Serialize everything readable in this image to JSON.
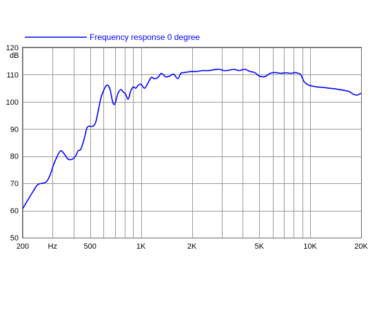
{
  "chart_data": {
    "type": "line",
    "title": "",
    "xlabel": "",
    "ylabel": "dB",
    "x_scale": "log",
    "xlim": [
      200,
      20000
    ],
    "ylim": [
      50,
      120
    ],
    "grid": true,
    "legend_position": "top-left",
    "x_ticks": [
      {
        "value": 200,
        "label": "200"
      },
      {
        "value": 300,
        "label": "Hz"
      },
      {
        "value": 500,
        "label": "500"
      },
      {
        "value": 1000,
        "label": "1K"
      },
      {
        "value": 2000,
        "label": "2K"
      },
      {
        "value": 5000,
        "label": "5K"
      },
      {
        "value": 10000,
        "label": "10K"
      },
      {
        "value": 20000,
        "label": "20K"
      }
    ],
    "x_gridlines": [
      200,
      300,
      400,
      500,
      600,
      700,
      800,
      900,
      1000,
      2000,
      3000,
      4000,
      5000,
      6000,
      7000,
      8000,
      9000,
      10000,
      20000
    ],
    "y_ticks": [
      50,
      60,
      70,
      80,
      90,
      100,
      110,
      120
    ],
    "series": [
      {
        "name": "Frequency response 0 degree",
        "color": "#0000ff",
        "x": [
          200,
          215,
          230,
          245,
          260,
          275,
          290,
          305,
          320,
          335,
          350,
          370,
          390,
          410,
          425,
          440,
          460,
          480,
          500,
          520,
          540,
          560,
          580,
          600,
          620,
          640,
          660,
          680,
          700,
          730,
          760,
          790,
          810,
          840,
          870,
          900,
          930,
          960,
          1000,
          1050,
          1100,
          1150,
          1200,
          1260,
          1320,
          1400,
          1480,
          1560,
          1650,
          1720,
          1800,
          1900,
          2000,
          2150,
          2300,
          2500,
          2700,
          2900,
          3100,
          3300,
          3550,
          3800,
          4100,
          4400,
          4700,
          5000,
          5400,
          5800,
          6200,
          6700,
          7200,
          7700,
          8200,
          8500,
          8800,
          9200,
          9600,
          10000,
          11000,
          12000,
          13000,
          14000,
          15000,
          16000,
          17000,
          18000,
          19000,
          20000
        ],
        "values": [
          60.7,
          64,
          67,
          69.5,
          70,
          70.5,
          73,
          77,
          80,
          82,
          81,
          79,
          78.8,
          80,
          82,
          82.5,
          86,
          90.5,
          91,
          91,
          92.5,
          97,
          101.5,
          104,
          105.8,
          106,
          104,
          100,
          99.2,
          103,
          104.5,
          103.5,
          103,
          101,
          104,
          105.5,
          105,
          106,
          106.5,
          105,
          107,
          109,
          108.5,
          109,
          110.5,
          109.2,
          109.5,
          110.2,
          108.5,
          110.5,
          110.8,
          111,
          111.2,
          111.2,
          111.5,
          111.5,
          111.8,
          112,
          111.5,
          111.6,
          112,
          111.5,
          112,
          111.2,
          110.8,
          109.5,
          109.3,
          110.5,
          110.8,
          110.5,
          110.7,
          110.5,
          110.8,
          110.5,
          110,
          107.5,
          106.5,
          106,
          105.5,
          105.3,
          105,
          104.8,
          104.5,
          104.2,
          103.8,
          102.8,
          102.5,
          103.2
        ]
      }
    ]
  }
}
